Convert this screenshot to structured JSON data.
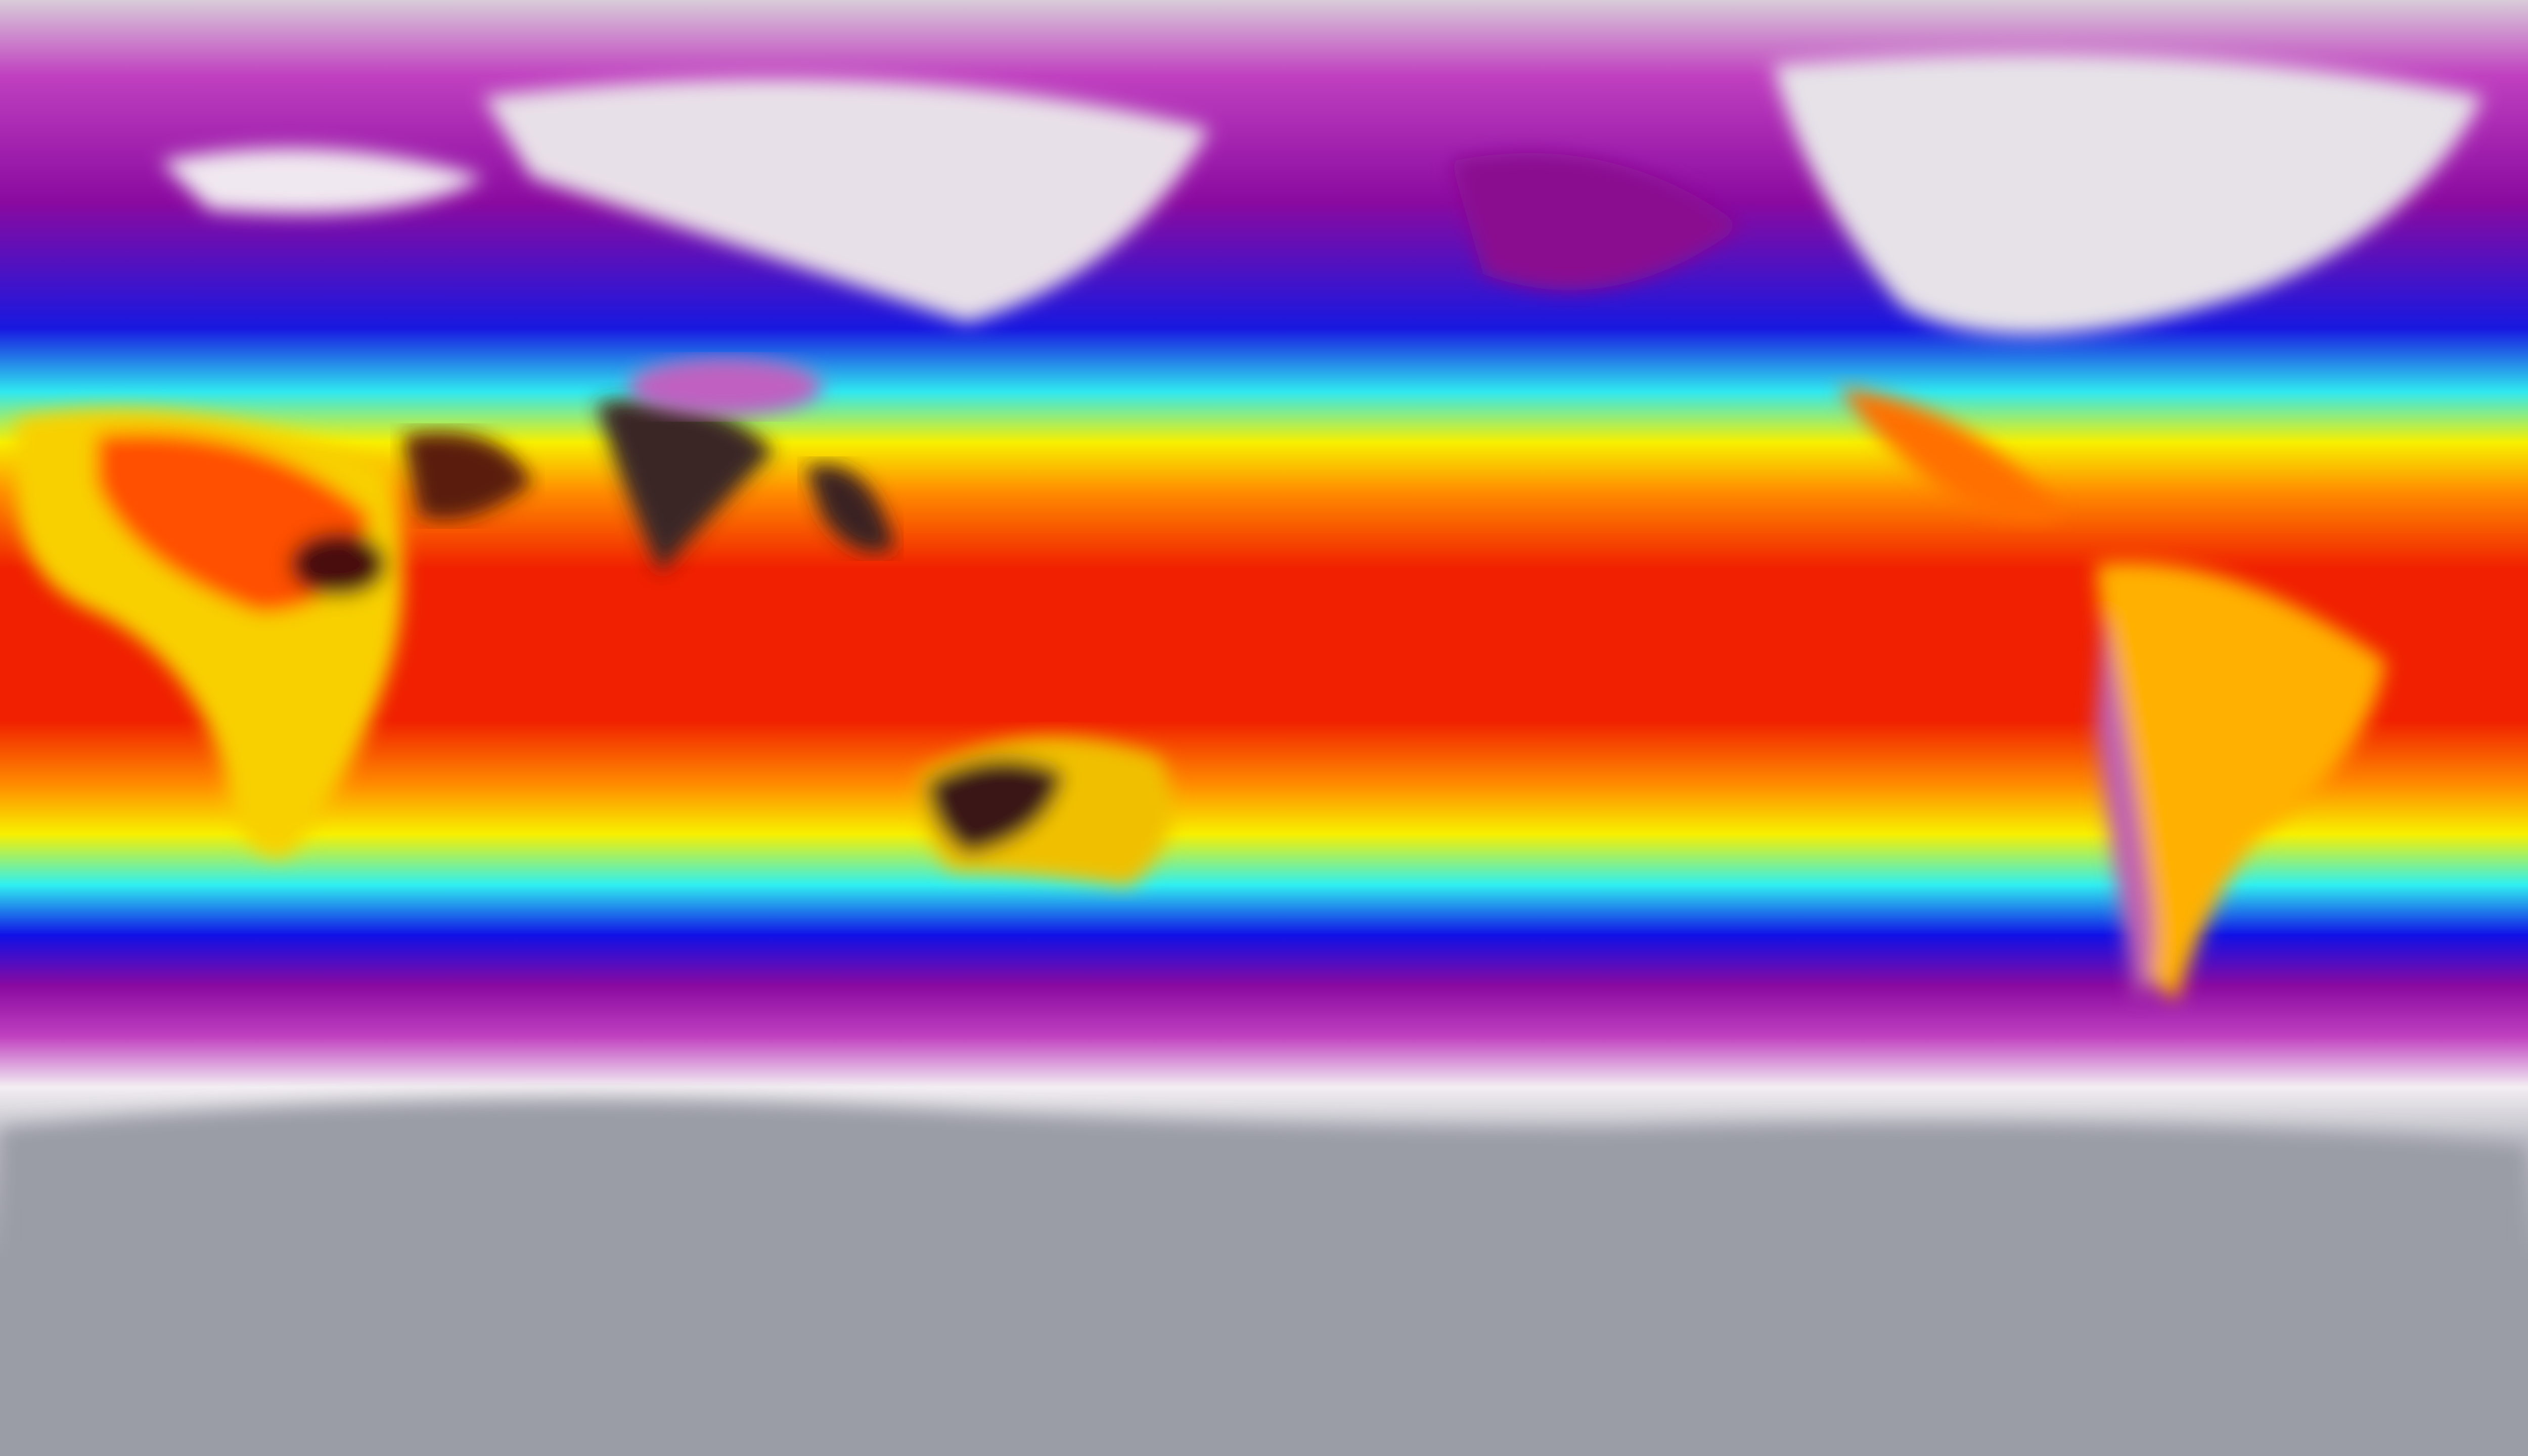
{
  "map": {
    "projection": "equirectangular",
    "variable_shown": "temperature",
    "colormap": [
      "#9a9ca6",
      "#f2eef2",
      "#c040c0",
      "#8a0aa0",
      "#1010e6",
      "#30f0f0",
      "#f8f000",
      "#ff8a00",
      "#f02000",
      "#3a1a1a"
    ],
    "colors": {
      "polar_ice": "#9a9ca6",
      "cold": "#f2eef2",
      "cool": "#8a0aa0",
      "mild": "#1010e6",
      "temperate": "#30f0f0",
      "warm": "#f8f000",
      "hot": "#f02000",
      "very_hot": "#3a1a1a"
    }
  }
}
